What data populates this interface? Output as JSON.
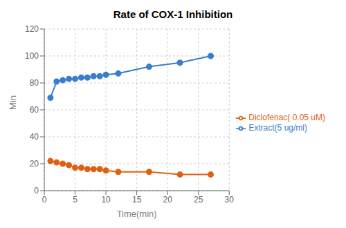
{
  "chart_data": {
    "type": "line",
    "title": "Rate of COX-1 Inhibition",
    "x_label": "Time(min)",
    "y_label": "Min",
    "x": [
      1,
      2,
      3,
      4,
      5,
      6,
      7,
      8,
      9,
      10,
      12,
      17,
      22,
      27
    ],
    "series": [
      {
        "name": "Extract(5 ug/ml)",
        "color": "#3a7dcc",
        "marker": "circle",
        "values": [
          69,
          81,
          82,
          83,
          83,
          84,
          84,
          85,
          85,
          86,
          87,
          92,
          95,
          100
        ]
      },
      {
        "name": "Diclofenac( 0.05 uM)",
        "color": "#e06010",
        "marker": "circle",
        "values": [
          22,
          21,
          20,
          19,
          17,
          17,
          16,
          16,
          16,
          15,
          14,
          14,
          12,
          12
        ]
      }
    ],
    "xlim": [
      0,
      30
    ],
    "xticks": [
      0,
      5,
      10,
      15,
      20,
      25,
      30
    ],
    "ylim": [
      0,
      120
    ],
    "yticks": [
      0,
      20,
      40,
      60,
      80,
      100,
      120
    ],
    "grid": true,
    "legend": "right"
  }
}
